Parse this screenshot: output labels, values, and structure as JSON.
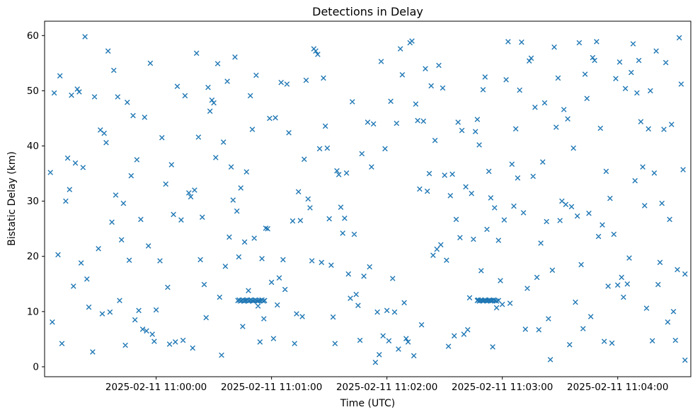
{
  "figure": {
    "title": "Detections in Delay",
    "xlabel": "Time (UTC)",
    "ylabel": "Bistatic Delay (km)"
  },
  "chart_data": {
    "type": "scatter",
    "title": "Detections in Delay",
    "xlabel": "Time (UTC)",
    "ylabel": "Bistatic Delay (km)",
    "marker": "x",
    "marker_color": "#1f77b4",
    "grid": false,
    "legend": "none",
    "x_unit": "seconds relative to 2025-02-11 11:00:00 UTC",
    "xlim": [
      -58,
      278
    ],
    "ylim": [
      -1.8,
      62.6
    ],
    "x_ticks": [
      {
        "value": 0,
        "label": "2025-02-11 11:00:00"
      },
      {
        "value": 60,
        "label": "2025-02-11 11:01:00"
      },
      {
        "value": 120,
        "label": "2025-02-11 11:02:00"
      },
      {
        "value": 180,
        "label": "2025-02-11 11:03:00"
      },
      {
        "value": 240,
        "label": "2025-02-11 11:04:00"
      }
    ],
    "y_ticks": [
      0,
      10,
      20,
      30,
      40,
      50,
      60
    ],
    "points": [
      [
        -55,
        35.2
      ],
      [
        -54,
        8.1
      ],
      [
        -53,
        49.6
      ],
      [
        -51,
        20.3
      ],
      [
        -50,
        52.7
      ],
      [
        -49,
        4.2
      ],
      [
        -47,
        30.0
      ],
      [
        -46,
        37.8
      ],
      [
        -45,
        32.1
      ],
      [
        -44,
        49.2
      ],
      [
        -43,
        14.6
      ],
      [
        -42,
        36.9
      ],
      [
        -41,
        50.3
      ],
      [
        -40,
        49.8
      ],
      [
        -39,
        18.8
      ],
      [
        -38,
        36.1
      ],
      [
        -37,
        59.8
      ],
      [
        -36,
        15.9
      ],
      [
        -35,
        10.8
      ],
      [
        -33,
        2.7
      ],
      [
        -32,
        48.9
      ],
      [
        -30,
        21.4
      ],
      [
        -29,
        42.9
      ],
      [
        -28,
        9.6
      ],
      [
        -27,
        42.3
      ],
      [
        -26,
        40.6
      ],
      [
        -25,
        57.2
      ],
      [
        -24,
        9.9
      ],
      [
        -23,
        26.2
      ],
      [
        -22,
        53.7
      ],
      [
        -21,
        31.1
      ],
      [
        -20,
        48.9
      ],
      [
        -19,
        12.0
      ],
      [
        -18,
        23.0
      ],
      [
        -17,
        29.6
      ],
      [
        -16,
        3.9
      ],
      [
        -15,
        47.9
      ],
      [
        -14,
        19.3
      ],
      [
        -13,
        34.6
      ],
      [
        -12,
        45.5
      ],
      [
        -11,
        8.5
      ],
      [
        -10,
        37.5
      ],
      [
        -9,
        10.2
      ],
      [
        -8,
        26.7
      ],
      [
        -7,
        6.8
      ],
      [
        -6,
        45.2
      ],
      [
        -5,
        6.5
      ],
      [
        -4,
        21.9
      ],
      [
        -3,
        55.0
      ],
      [
        -2,
        5.9
      ],
      [
        -1,
        4.6
      ],
      [
        0,
        10.3
      ],
      [
        2,
        19.2
      ],
      [
        3,
        41.5
      ],
      [
        5,
        33.1
      ],
      [
        6,
        14.4
      ],
      [
        7,
        4.1
      ],
      [
        8,
        36.6
      ],
      [
        9,
        27.6
      ],
      [
        10,
        4.5
      ],
      [
        11,
        50.8
      ],
      [
        13,
        26.6
      ],
      [
        14,
        4.8
      ],
      [
        15,
        49.1
      ],
      [
        17,
        31.5
      ],
      [
        18,
        30.8
      ],
      [
        19,
        3.4
      ],
      [
        20,
        32.0
      ],
      [
        21,
        56.8
      ],
      [
        22,
        41.6
      ],
      [
        23,
        19.4
      ],
      [
        24,
        27.1
      ],
      [
        25,
        14.9
      ],
      [
        26,
        8.9
      ],
      [
        27,
        50.6
      ],
      [
        28,
        46.3
      ],
      [
        29,
        48.3
      ],
      [
        30,
        47.8
      ],
      [
        31,
        37.9
      ],
      [
        32,
        54.9
      ],
      [
        33,
        12.6
      ],
      [
        34,
        2.1
      ],
      [
        35,
        40.7
      ],
      [
        36,
        18.2
      ],
      [
        37,
        51.7
      ],
      [
        38,
        23.5
      ],
      [
        39,
        36.2
      ],
      [
        40,
        30.2
      ],
      [
        41,
        56.1
      ],
      [
        42,
        28.2
      ],
      [
        43,
        19.9
      ],
      [
        44,
        32.4
      ],
      [
        45,
        7.3
      ],
      [
        46,
        22.6
      ],
      [
        47,
        35.3
      ],
      [
        48,
        13.8
      ],
      [
        49,
        49.1
      ],
      [
        50,
        43.0
      ],
      [
        51,
        23.3
      ],
      [
        52,
        52.8
      ],
      [
        53,
        11.0
      ],
      [
        54,
        4.5
      ],
      [
        55,
        19.6
      ],
      [
        56,
        8.7
      ],
      [
        57,
        25.1
      ],
      [
        58,
        25.0
      ],
      [
        59,
        45.0
      ],
      [
        60,
        15.3
      ],
      [
        61,
        5.1
      ],
      [
        62,
        45.1
      ],
      [
        63,
        11.2
      ],
      [
        64,
        16.1
      ],
      [
        65,
        51.5
      ],
      [
        66,
        19.4
      ],
      [
        67,
        14.0
      ],
      [
        68,
        51.2
      ],
      [
        69,
        42.4
      ],
      [
        71,
        26.4
      ],
      [
        72,
        4.2
      ],
      [
        73,
        9.6
      ],
      [
        74,
        31.7
      ],
      [
        75,
        26.5
      ],
      [
        76,
        9.1
      ],
      [
        77,
        37.6
      ],
      [
        78,
        51.9
      ],
      [
        79,
        30.4
      ],
      [
        80,
        28.8
      ],
      [
        81,
        19.2
      ],
      [
        82,
        57.6
      ],
      [
        83,
        57.2
      ],
      [
        84,
        56.6
      ],
      [
        85,
        39.5
      ],
      [
        86,
        18.9
      ],
      [
        87,
        52.3
      ],
      [
        88,
        43.6
      ],
      [
        89,
        39.6
      ],
      [
        90,
        26.8
      ],
      [
        91,
        18.4
      ],
      [
        92,
        9.0
      ],
      [
        93,
        4.2
      ],
      [
        94,
        35.5
      ],
      [
        95,
        34.8
      ],
      [
        96,
        28.9
      ],
      [
        97,
        24.2
      ],
      [
        98,
        26.9
      ],
      [
        99,
        35.1
      ],
      [
        100,
        16.8
      ],
      [
        101,
        12.4
      ],
      [
        102,
        48.0
      ],
      [
        103,
        24.0
      ],
      [
        104,
        13.1
      ],
      [
        105,
        11.1
      ],
      [
        106,
        4.8
      ],
      [
        107,
        38.6
      ],
      [
        108,
        16.4
      ],
      [
        110,
        44.3
      ],
      [
        111,
        18.1
      ],
      [
        112,
        36.2
      ],
      [
        113,
        44.0
      ],
      [
        114,
        0.8
      ],
      [
        115,
        9.9
      ],
      [
        116,
        2.2
      ],
      [
        117,
        55.3
      ],
      [
        118,
        5.6
      ],
      [
        119,
        39.5
      ],
      [
        120,
        10.2
      ],
      [
        121,
        4.7
      ],
      [
        122,
        48.1
      ],
      [
        123,
        16.0
      ],
      [
        124,
        9.9
      ],
      [
        125,
        44.1
      ],
      [
        126,
        3.2
      ],
      [
        127,
        57.6
      ],
      [
        128,
        52.9
      ],
      [
        129,
        11.6
      ],
      [
        130,
        5.1
      ],
      [
        131,
        4.5
      ],
      [
        132,
        58.7
      ],
      [
        133,
        59.0
      ],
      [
        134,
        2.0
      ],
      [
        135,
        47.6
      ],
      [
        136,
        44.6
      ],
      [
        137,
        32.2
      ],
      [
        138,
        7.6
      ],
      [
        139,
        44.5
      ],
      [
        140,
        54.0
      ],
      [
        141,
        31.8
      ],
      [
        142,
        35.0
      ],
      [
        143,
        50.9
      ],
      [
        144,
        20.2
      ],
      [
        145,
        41.0
      ],
      [
        146,
        21.3
      ],
      [
        147,
        54.6
      ],
      [
        148,
        22.1
      ],
      [
        149,
        50.5
      ],
      [
        150,
        34.7
      ],
      [
        151,
        19.3
      ],
      [
        152,
        3.7
      ],
      [
        153,
        31.0
      ],
      [
        154,
        34.9
      ],
      [
        155,
        5.6
      ],
      [
        156,
        26.7
      ],
      [
        157,
        44.3
      ],
      [
        158,
        23.4
      ],
      [
        159,
        42.8
      ],
      [
        160,
        5.9
      ],
      [
        161,
        32.6
      ],
      [
        162,
        6.7
      ],
      [
        163,
        12.5
      ],
      [
        164,
        31.4
      ],
      [
        165,
        23.1
      ],
      [
        166,
        42.6
      ],
      [
        167,
        44.8
      ],
      [
        168,
        40.2
      ],
      [
        169,
        17.4
      ],
      [
        170,
        50.2
      ],
      [
        171,
        52.5
      ],
      [
        172,
        24.9
      ],
      [
        173,
        35.4
      ],
      [
        174,
        30.6
      ],
      [
        175,
        3.6
      ],
      [
        176,
        28.8
      ],
      [
        177,
        10.7
      ],
      [
        178,
        22.9
      ],
      [
        179,
        15.6
      ],
      [
        180,
        11.3
      ],
      [
        181,
        26.6
      ],
      [
        182,
        52.0
      ],
      [
        183,
        58.9
      ],
      [
        184,
        11.5
      ],
      [
        185,
        36.7
      ],
      [
        186,
        29.1
      ],
      [
        187,
        43.1
      ],
      [
        188,
        34.2
      ],
      [
        189,
        50.1
      ],
      [
        190,
        58.8
      ],
      [
        191,
        27.9
      ],
      [
        192,
        6.8
      ],
      [
        193,
        14.2
      ],
      [
        194,
        55.4
      ],
      [
        195,
        55.9
      ],
      [
        196,
        34.5
      ],
      [
        197,
        47.0
      ],
      [
        198,
        16.2
      ],
      [
        199,
        6.7
      ],
      [
        200,
        22.4
      ],
      [
        201,
        37.1
      ],
      [
        202,
        47.8
      ],
      [
        203,
        26.3
      ],
      [
        204,
        8.7
      ],
      [
        205,
        1.3
      ],
      [
        206,
        17.5
      ],
      [
        207,
        57.9
      ],
      [
        208,
        43.4
      ],
      [
        209,
        52.3
      ],
      [
        210,
        26.5
      ],
      [
        211,
        30.0
      ],
      [
        212,
        46.6
      ],
      [
        213,
        29.4
      ],
      [
        214,
        44.9
      ],
      [
        215,
        4.0
      ],
      [
        216,
        29.0
      ],
      [
        217,
        39.6
      ],
      [
        218,
        11.7
      ],
      [
        219,
        27.3
      ],
      [
        220,
        58.7
      ],
      [
        221,
        18.5
      ],
      [
        222,
        6.9
      ],
      [
        223,
        53.0
      ],
      [
        224,
        48.6
      ],
      [
        225,
        27.8
      ],
      [
        226,
        9.1
      ],
      [
        227,
        56.0
      ],
      [
        228,
        55.5
      ],
      [
        229,
        58.9
      ],
      [
        230,
        23.6
      ],
      [
        231,
        43.2
      ],
      [
        232,
        25.7
      ],
      [
        233,
        4.6
      ],
      [
        234,
        35.4
      ],
      [
        235,
        14.6
      ],
      [
        236,
        30.5
      ],
      [
        237,
        4.3
      ],
      [
        238,
        24.0
      ],
      [
        239,
        52.2
      ],
      [
        240,
        14.8
      ],
      [
        241,
        55.2
      ],
      [
        242,
        16.2
      ],
      [
        243,
        12.6
      ],
      [
        244,
        50.4
      ],
      [
        245,
        15.0
      ],
      [
        246,
        19.7
      ],
      [
        247,
        53.3
      ],
      [
        248,
        58.5
      ],
      [
        249,
        33.7
      ],
      [
        250,
        49.6
      ],
      [
        251,
        55.5
      ],
      [
        252,
        44.4
      ],
      [
        253,
        36.2
      ],
      [
        254,
        29.2
      ],
      [
        255,
        10.6
      ],
      [
        256,
        43.1
      ],
      [
        257,
        50.0
      ],
      [
        258,
        4.7
      ],
      [
        259,
        35.1
      ],
      [
        260,
        57.2
      ],
      [
        261,
        14.9
      ],
      [
        262,
        18.9
      ],
      [
        263,
        29.6
      ],
      [
        264,
        43.0
      ],
      [
        265,
        55.1
      ],
      [
        266,
        8.1
      ],
      [
        267,
        26.7
      ],
      [
        268,
        43.9
      ],
      [
        269,
        10.0
      ],
      [
        270,
        4.8
      ],
      [
        271,
        17.6
      ],
      [
        272,
        59.6
      ],
      [
        273,
        51.2
      ],
      [
        274,
        35.7
      ],
      [
        275,
        16.8
      ],
      [
        275,
        1.2
      ],
      [
        42.5,
        12.0
      ],
      [
        43.2,
        12.1
      ],
      [
        43.8,
        11.9
      ],
      [
        44.4,
        12.0
      ],
      [
        45.0,
        12.1
      ],
      [
        45.6,
        11.9
      ],
      [
        46.2,
        12.0
      ],
      [
        46.8,
        12.0
      ],
      [
        47.4,
        12.1
      ],
      [
        48.0,
        11.9
      ],
      [
        48.6,
        12.0
      ],
      [
        49.2,
        12.1
      ],
      [
        49.8,
        12.0
      ],
      [
        50.4,
        11.9
      ],
      [
        51.0,
        12.0
      ],
      [
        51.6,
        12.1
      ],
      [
        52.2,
        12.0
      ],
      [
        52.8,
        11.9
      ],
      [
        53.4,
        12.0
      ],
      [
        54.2,
        12.0
      ],
      [
        55.0,
        12.1
      ],
      [
        55.8,
        11.9
      ],
      [
        56.4,
        12.0
      ],
      [
        167.0,
        12.0
      ],
      [
        167.5,
        12.1
      ],
      [
        168.0,
        11.9
      ],
      [
        168.5,
        12.0
      ],
      [
        169.0,
        12.1
      ],
      [
        169.5,
        12.0
      ],
      [
        170.0,
        11.9
      ],
      [
        170.5,
        12.0
      ],
      [
        171.0,
        12.1
      ],
      [
        171.5,
        12.0
      ],
      [
        172.0,
        11.9
      ],
      [
        172.5,
        12.0
      ],
      [
        173.0,
        12.0
      ],
      [
        173.5,
        12.1
      ],
      [
        174.0,
        11.9
      ],
      [
        174.5,
        12.0
      ],
      [
        175.0,
        12.0
      ],
      [
        175.5,
        12.1
      ],
      [
        176.2,
        12.0
      ],
      [
        177.0,
        11.9
      ],
      [
        178.0,
        12.0
      ]
    ]
  }
}
